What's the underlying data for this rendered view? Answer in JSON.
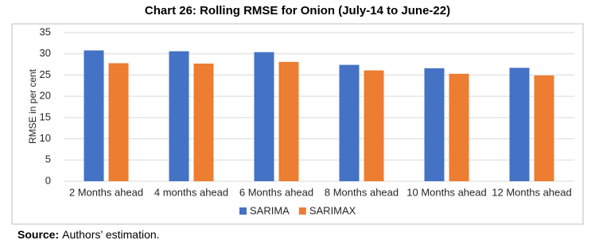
{
  "chart_data": {
    "type": "bar",
    "title": "Chart 26: Rolling RMSE for Onion (July-14 to June-22)",
    "y_label": "RMSE in per cent",
    "categories": [
      "2 Months ahead",
      "4 months ahead",
      "6 Months ahead",
      "8 Months ahead",
      "10 Months ahead",
      "12 Months ahead"
    ],
    "series": [
      {
        "name": "SARIMA",
        "color": "#4472c4",
        "values": [
          30.8,
          30.6,
          30.4,
          27.4,
          26.6,
          26.7
        ]
      },
      {
        "name": "SARIMAX",
        "color": "#ed7d31",
        "values": [
          27.8,
          27.7,
          28.1,
          26.1,
          25.3,
          24.9
        ]
      }
    ],
    "ylim": [
      0,
      35
    ],
    "yticks": [
      0,
      5,
      10,
      15,
      20,
      25,
      30,
      35
    ],
    "grid": true,
    "legend": "bottom"
  },
  "source": {
    "label": "Source:",
    "text": "Authors’ estimation."
  }
}
